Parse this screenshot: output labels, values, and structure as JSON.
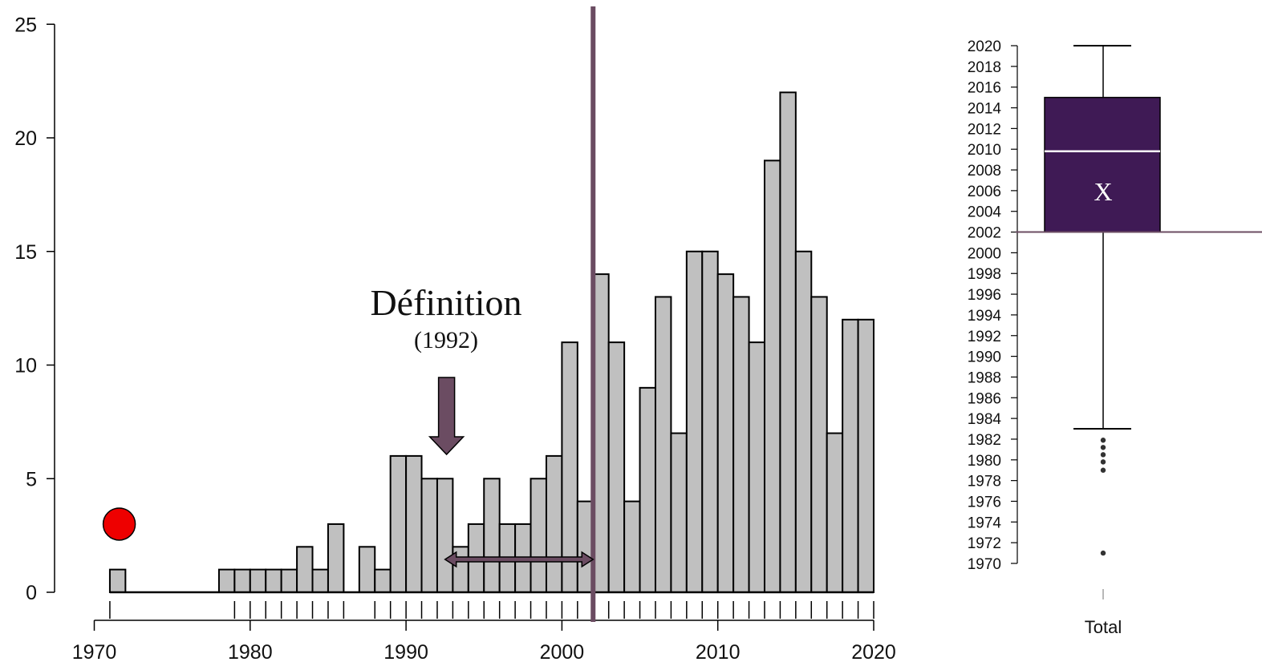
{
  "chart_data": [
    {
      "type": "bar",
      "title": "",
      "xlabel": "",
      "ylabel": "",
      "x_ticks": [
        "1970",
        "1980",
        "1990",
        "2000",
        "2010",
        "2020"
      ],
      "y_ticks": [
        "0",
        "5",
        "10",
        "15",
        "20",
        "25"
      ],
      "ylim": [
        0,
        25
      ],
      "xlim": [
        1970,
        2020
      ],
      "bin_width": 1,
      "categories": [
        1971,
        1972,
        1973,
        1974,
        1975,
        1976,
        1977,
        1978,
        1979,
        1980,
        1981,
        1982,
        1983,
        1984,
        1985,
        1986,
        1987,
        1988,
        1989,
        1990,
        1991,
        1992,
        1993,
        1994,
        1995,
        1996,
        1997,
        1998,
        1999,
        2000,
        2001,
        2002,
        2003,
        2004,
        2005,
        2006,
        2007,
        2008,
        2009,
        2010,
        2011,
        2012,
        2013,
        2014,
        2015,
        2016,
        2017,
        2018,
        2019
      ],
      "values": [
        1,
        0,
        0,
        0,
        0,
        0,
        0,
        1,
        1,
        1,
        1,
        1,
        2,
        1,
        3,
        0,
        2,
        1,
        6,
        6,
        5,
        5,
        2,
        3,
        5,
        3,
        3,
        5,
        6,
        11,
        4,
        14,
        11,
        4,
        9,
        13,
        7,
        15,
        15,
        14,
        13,
        11,
        19,
        22,
        15,
        13,
        7,
        12,
        12
      ],
      "rug_ticks": [
        1971,
        1979,
        1980,
        1981,
        1982,
        1983,
        1984,
        1985,
        1986,
        1988,
        1989,
        1990,
        1991,
        1992,
        1993,
        1994,
        1995,
        1996,
        1997,
        1998,
        1999,
        2000,
        2001,
        2002,
        2003,
        2004,
        2005,
        2006,
        2007,
        2008,
        2009,
        2010,
        2011,
        2012,
        2013,
        2014,
        2015,
        2016,
        2017,
        2018,
        2019,
        2020
      ],
      "annotations": {
        "definition_label": "Définition",
        "definition_year": "(1992)",
        "definition_arrow_x": 1992.6,
        "vertical_line_x": 2002,
        "double_arrow_from": 1992.5,
        "double_arrow_to": 2002,
        "red_marker": {
          "x": 1971.6,
          "y": 3
        }
      },
      "colors": {
        "bar": "#c0c0c0",
        "accent": "#6b4c62",
        "marker": "#ee0000"
      },
      "grid": false
    },
    {
      "type": "box",
      "category": "Total",
      "y_ticks": [
        "1970",
        "1972",
        "1974",
        "1976",
        "1978",
        "1980",
        "1982",
        "1984",
        "1986",
        "1988",
        "1990",
        "1992",
        "1994",
        "1996",
        "1998",
        "2000",
        "2002",
        "2004",
        "2006",
        "2008",
        "2010",
        "2012",
        "2014",
        "2016",
        "2018",
        "2020"
      ],
      "ylim": [
        1970,
        2020
      ],
      "min": 1983,
      "q1": 2002,
      "median": 2009.8,
      "q3": 2015,
      "max": 2020,
      "outliers": [
        1971,
        1979,
        1979.8,
        1980.5,
        1981.2,
        1981.9
      ],
      "mean_label": "X",
      "colors": {
        "box": "#3f1a55",
        "median": "#ffffff",
        "accent": "#6b4c62"
      }
    }
  ]
}
